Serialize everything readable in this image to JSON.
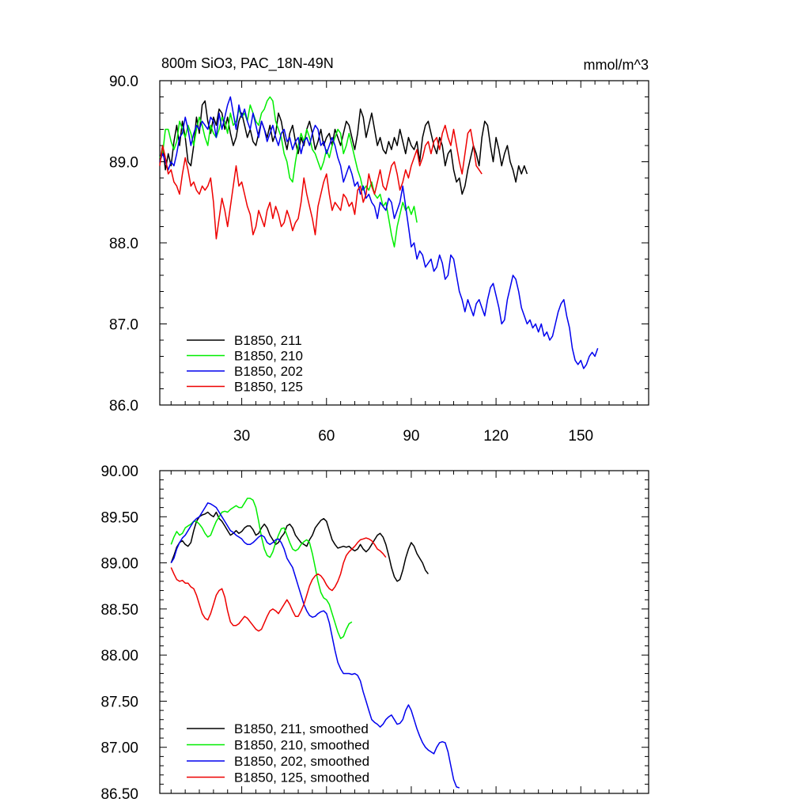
{
  "figure": {
    "title_left": "800m SiO3, PAC_18N-49N",
    "title_right": "mmol/m^3"
  },
  "chart_data": [
    {
      "type": "line",
      "title": "800m SiO3, PAC_18N-49N",
      "units": "mmol/m^3",
      "xlabel": "",
      "ylabel": "",
      "xlim": [
        1,
        174
      ],
      "ylim": [
        86.0,
        90.0
      ],
      "x_ticks": [
        30,
        60,
        90,
        120,
        150
      ],
      "y_ticks": [
        86.0,
        87.0,
        88.0,
        89.0,
        90.0
      ],
      "y_tick_labels": [
        "86.0",
        "87.0",
        "88.0",
        "89.0",
        "90.0"
      ],
      "legend_position": "bottom-left",
      "series": [
        {
          "name": "B1850, 211",
          "color": "#000000",
          "x_start": 1,
          "values": [
            89.0,
            89.2,
            88.9,
            89.1,
            88.95,
            89.25,
            89.45,
            89.2,
            89.5,
            89.3,
            89.0,
            88.95,
            89.2,
            89.55,
            89.35,
            89.7,
            89.75,
            89.5,
            89.35,
            89.55,
            89.45,
            89.65,
            89.6,
            89.4,
            89.55,
            89.35,
            89.2,
            89.3,
            89.5,
            89.6,
            89.45,
            89.3,
            89.4,
            89.25,
            89.2,
            89.35,
            89.5,
            89.4,
            89.3,
            89.45,
            89.25,
            89.35,
            89.6,
            89.5,
            89.3,
            89.15,
            89.35,
            89.45,
            89.25,
            89.1,
            89.3,
            89.2,
            89.4,
            89.5,
            89.35,
            89.15,
            89.25,
            89.4,
            89.2,
            89.3,
            89.35,
            89.2,
            89.4,
            89.3,
            89.2,
            89.35,
            89.5,
            89.45,
            89.3,
            89.15,
            89.35,
            89.65,
            89.55,
            89.3,
            89.45,
            89.6,
            89.4,
            89.2,
            89.3,
            89.15,
            89.1,
            89.25,
            89.15,
            89.3,
            89.2,
            89.4,
            89.25,
            89.1,
            89.3,
            89.2,
            89.15,
            89.25,
            89.0,
            89.3,
            89.45,
            89.5,
            89.35,
            89.2,
            89.1,
            89.3,
            89.2,
            88.95,
            89.1,
            89.15,
            88.9,
            88.75,
            88.8,
            88.6,
            88.7,
            88.9,
            89.05,
            89.2,
            89.1,
            88.95,
            89.3,
            89.5,
            89.45,
            89.2,
            89.0,
            89.3,
            89.15,
            88.95,
            89.1,
            89.2,
            89.0,
            88.9,
            88.75,
            88.95,
            88.85,
            88.95,
            88.85
          ]
        },
        {
          "name": "B1850, 210",
          "color": "#00ee00",
          "x_start": 1,
          "values": [
            89.05,
            89.1,
            89.4,
            89.4,
            89.25,
            89.15,
            89.25,
            89.5,
            89.4,
            89.3,
            89.45,
            89.35,
            89.2,
            89.4,
            89.55,
            89.45,
            89.3,
            89.2,
            89.45,
            89.35,
            89.3,
            89.4,
            89.55,
            89.5,
            89.35,
            89.6,
            89.45,
            89.5,
            89.65,
            89.55,
            89.6,
            89.5,
            89.7,
            89.6,
            89.5,
            89.45,
            89.6,
            89.65,
            89.75,
            89.8,
            89.75,
            89.5,
            89.4,
            89.3,
            89.1,
            89.0,
            88.8,
            88.75,
            89.0,
            89.2,
            89.35,
            89.25,
            89.4,
            89.3,
            89.15,
            89.1,
            89.0,
            88.9,
            89.0,
            89.15,
            89.05,
            89.2,
            89.3,
            89.4,
            89.35,
            89.1,
            89.2,
            89.35,
            89.2,
            89.05,
            88.9,
            88.8,
            88.65,
            88.7,
            88.65,
            88.75,
            88.6,
            88.55,
            88.6,
            88.45,
            88.5,
            88.3,
            88.1,
            87.95,
            88.2,
            88.35,
            88.5,
            88.4,
            88.45,
            88.35,
            88.45,
            88.25
          ]
        },
        {
          "name": "B1850, 202",
          "color": "#0000ee",
          "x_start": 1,
          "values": [
            89.0,
            89.1,
            89.0,
            88.9,
            89.0,
            88.95,
            89.1,
            89.3,
            89.35,
            89.55,
            89.4,
            89.2,
            89.35,
            89.45,
            89.4,
            89.5,
            89.45,
            89.4,
            89.55,
            89.5,
            89.3,
            89.6,
            89.4,
            89.55,
            89.7,
            89.8,
            89.6,
            89.4,
            89.7,
            89.55,
            89.65,
            89.5,
            89.4,
            89.6,
            89.45,
            89.3,
            89.5,
            89.4,
            89.25,
            89.35,
            89.45,
            89.3,
            89.2,
            89.35,
            89.4,
            89.25,
            89.3,
            89.15,
            89.25,
            89.3,
            89.1,
            89.25,
            89.3,
            89.2,
            89.35,
            89.45,
            89.4,
            89.2,
            89.25,
            89.1,
            89.2,
            89.3,
            89.2,
            89.05,
            88.95,
            88.75,
            88.85,
            88.95,
            88.85,
            88.7,
            88.75,
            88.6,
            88.7,
            88.55,
            88.6,
            88.5,
            88.45,
            88.3,
            88.5,
            88.45,
            88.4,
            88.55,
            88.5,
            88.3,
            88.4,
            88.5,
            88.7,
            88.45,
            88.2,
            87.95,
            88.0,
            87.8,
            87.9,
            87.85,
            87.7,
            87.75,
            87.8,
            87.65,
            87.7,
            87.85,
            87.75,
            87.55,
            87.6,
            87.85,
            87.8,
            87.6,
            87.4,
            87.3,
            87.15,
            87.3,
            87.2,
            87.1,
            87.25,
            87.3,
            87.2,
            87.1,
            87.3,
            87.45,
            87.5,
            87.35,
            87.2,
            87.0,
            87.05,
            87.3,
            87.45,
            87.6,
            87.55,
            87.4,
            87.2,
            87.1,
            87.0,
            87.05,
            86.95,
            87.0,
            86.9,
            87.0,
            86.85,
            86.9,
            86.8,
            86.85,
            87.0,
            87.15,
            87.25,
            87.3,
            87.1,
            86.95,
            86.7,
            86.55,
            86.5,
            86.55,
            86.45,
            86.5,
            86.6,
            86.65,
            86.6,
            86.7
          ]
        },
        {
          "name": "B1850, 125",
          "color": "#ee0000",
          "x_start": 1,
          "values": [
            88.95,
            89.2,
            89.05,
            88.85,
            88.9,
            88.75,
            88.7,
            88.6,
            88.85,
            89.05,
            88.9,
            88.7,
            88.75,
            88.65,
            88.6,
            88.7,
            88.65,
            88.7,
            88.8,
            88.5,
            88.05,
            88.3,
            88.55,
            88.4,
            88.2,
            88.45,
            88.7,
            88.95,
            88.7,
            88.75,
            88.6,
            88.45,
            88.35,
            88.1,
            88.2,
            88.4,
            88.3,
            88.2,
            88.4,
            88.5,
            88.3,
            88.45,
            88.35,
            88.2,
            88.25,
            88.4,
            88.3,
            88.15,
            88.25,
            88.3,
            88.5,
            88.8,
            88.6,
            88.45,
            88.3,
            88.1,
            88.45,
            88.6,
            88.75,
            88.85,
            88.6,
            88.4,
            88.5,
            88.45,
            88.4,
            88.6,
            88.55,
            88.45,
            88.5,
            88.35,
            88.65,
            88.7,
            88.5,
            88.6,
            88.85,
            88.7,
            88.6,
            88.75,
            88.9,
            88.7,
            88.65,
            88.8,
            88.95,
            89.0,
            88.85,
            88.65,
            88.75,
            88.9,
            88.8,
            88.95,
            89.05,
            89.15,
            88.95,
            89.05,
            89.2,
            89.25,
            89.1,
            89.25,
            89.3,
            89.15,
            89.35,
            89.45,
            89.3,
            89.2,
            89.4,
            89.2,
            89.0,
            88.85,
            89.1,
            89.35,
            89.4,
            89.2,
            88.95,
            88.9,
            88.85
          ]
        }
      ]
    },
    {
      "type": "line",
      "title": "",
      "xlabel": "",
      "ylabel": "",
      "xlim": [
        1,
        174
      ],
      "ylim": [
        86.5,
        90.0
      ],
      "x_ticks": [
        30,
        60,
        90,
        120,
        150
      ],
      "y_ticks": [
        86.5,
        87.0,
        87.5,
        88.0,
        88.5,
        89.0,
        89.5,
        90.0
      ],
      "y_tick_labels": [
        "86.50",
        "87.00",
        "87.50",
        "88.00",
        "88.50",
        "89.00",
        "89.50",
        "90.00"
      ],
      "legend_position": "bottom-left",
      "series": [
        {
          "name": "B1850, 211, smoothed",
          "color": "#000000",
          "x_start": 5,
          "values": [
            89.0,
            89.08,
            89.17,
            89.22,
            89.24,
            89.2,
            89.18,
            89.22,
            89.35,
            89.45,
            89.5,
            89.52,
            89.53,
            89.55,
            89.52,
            89.5,
            89.55,
            89.48,
            89.45,
            89.4,
            89.35,
            89.3,
            89.32,
            89.35,
            89.32,
            89.34,
            89.38,
            89.4,
            89.4,
            89.36,
            89.3,
            89.32,
            89.38,
            89.42,
            89.38,
            89.3,
            89.25,
            89.2,
            89.22,
            89.28,
            89.32,
            89.4,
            89.42,
            89.38,
            89.3,
            89.26,
            89.22,
            89.2,
            89.18,
            89.25,
            89.3,
            89.38,
            89.42,
            89.46,
            89.48,
            89.45,
            89.35,
            89.25,
            89.2,
            89.16,
            89.17,
            89.18,
            89.17,
            89.18,
            89.15,
            89.13,
            89.15,
            89.2,
            89.15,
            89.12,
            89.15,
            89.2,
            89.25,
            89.3,
            89.32,
            89.28,
            89.2,
            89.08,
            88.95,
            88.85,
            88.8,
            88.82,
            88.92,
            89.05,
            89.15,
            89.22,
            89.18,
            89.1,
            89.05,
            89.0,
            88.92,
            88.88
          ]
        },
        {
          "name": "B1850, 210, smoothed",
          "color": "#00ee00",
          "x_start": 5,
          "values": [
            89.2,
            89.28,
            89.34,
            89.3,
            89.32,
            89.38,
            89.4,
            89.42,
            89.45,
            89.45,
            89.42,
            89.38,
            89.32,
            89.28,
            89.3,
            89.38,
            89.45,
            89.5,
            89.55,
            89.56,
            89.55,
            89.58,
            89.6,
            89.62,
            89.6,
            89.6,
            89.65,
            89.7,
            89.7,
            89.68,
            89.6,
            89.45,
            89.28,
            89.15,
            89.08,
            89.06,
            89.12,
            89.22,
            89.3,
            89.37,
            89.38,
            89.3,
            89.22,
            89.15,
            89.13,
            89.15,
            89.2,
            89.23,
            89.25,
            89.22,
            89.1,
            88.95,
            88.8,
            88.68,
            88.62,
            88.6,
            88.55,
            88.45,
            88.35,
            88.25,
            88.18,
            88.2,
            88.28,
            88.34,
            88.36
          ]
        },
        {
          "name": "B1850, 202, smoothed",
          "color": "#0000ee",
          "x_start": 5,
          "values": [
            89.0,
            89.05,
            89.15,
            89.22,
            89.27,
            89.3,
            89.35,
            89.4,
            89.45,
            89.48,
            89.5,
            89.55,
            89.6,
            89.65,
            89.64,
            89.62,
            89.6,
            89.55,
            89.5,
            89.45,
            89.4,
            89.35,
            89.33,
            89.3,
            89.28,
            89.26,
            89.22,
            89.2,
            89.2,
            89.22,
            89.25,
            89.28,
            89.3,
            89.28,
            89.22,
            89.2,
            89.22,
            89.25,
            89.26,
            89.22,
            89.15,
            89.05,
            89.0,
            88.95,
            88.85,
            88.75,
            88.65,
            88.55,
            88.48,
            88.43,
            88.41,
            88.42,
            88.45,
            88.47,
            88.48,
            88.45,
            88.35,
            88.2,
            88.05,
            87.92,
            87.85,
            87.8,
            87.8,
            87.8,
            87.79,
            87.8,
            87.78,
            87.72,
            87.6,
            87.5,
            87.4,
            87.3,
            87.27,
            87.25,
            87.22,
            87.25,
            87.3,
            87.33,
            87.35,
            87.3,
            87.25,
            87.26,
            87.3,
            87.4,
            87.46,
            87.4,
            87.3,
            87.2,
            87.12,
            87.05,
            87.0,
            86.97,
            86.95,
            86.93,
            87.0,
            87.05,
            87.06,
            87.05,
            86.95,
            86.8,
            86.65,
            86.57,
            86.56
          ]
        },
        {
          "name": "B1850, 125, smoothed",
          "color": "#ee0000",
          "x_start": 5,
          "values": [
            88.95,
            88.88,
            88.82,
            88.8,
            88.81,
            88.78,
            88.78,
            88.74,
            88.72,
            88.65,
            88.55,
            88.45,
            88.4,
            88.38,
            88.45,
            88.55,
            88.65,
            88.7,
            88.72,
            88.63,
            88.48,
            88.36,
            88.32,
            88.32,
            88.34,
            88.38,
            88.42,
            88.4,
            88.36,
            88.32,
            88.28,
            88.26,
            88.28,
            88.35,
            88.42,
            88.48,
            88.5,
            88.48,
            88.45,
            88.5,
            88.55,
            88.6,
            88.55,
            88.48,
            88.42,
            88.42,
            88.48,
            88.55,
            88.65,
            88.75,
            88.82,
            88.86,
            88.88,
            88.86,
            88.82,
            88.76,
            88.72,
            88.7,
            88.74,
            88.8,
            88.88,
            89.0,
            89.08,
            89.12,
            89.15,
            89.18,
            89.22,
            89.25,
            89.26,
            89.27,
            89.26,
            89.24,
            89.2,
            89.15,
            89.13,
            89.1,
            89.06
          ]
        }
      ]
    }
  ]
}
